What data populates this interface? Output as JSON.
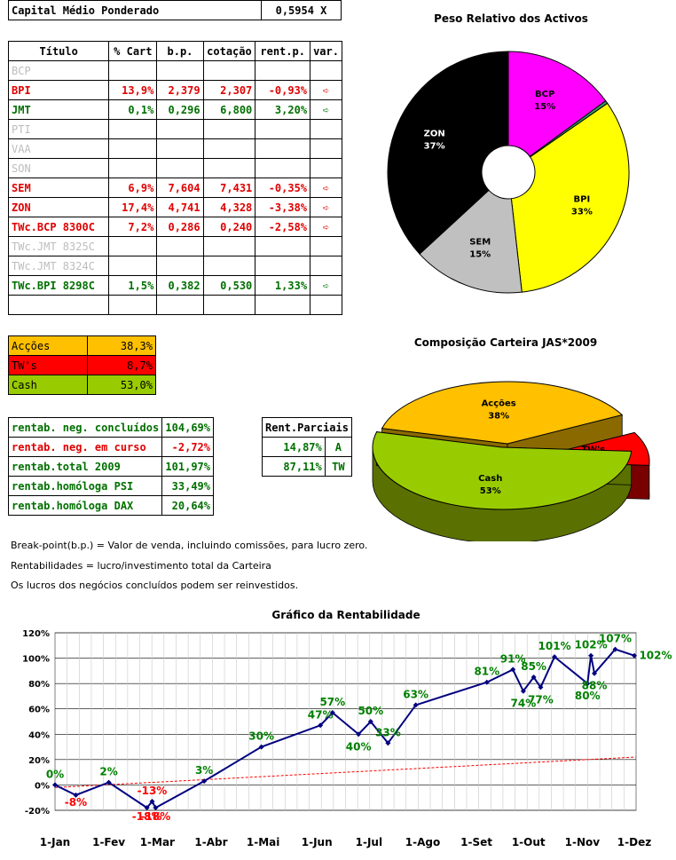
{
  "capital": {
    "label": "Capital Médio Ponderado",
    "value": "0,5954 X"
  },
  "titles": {
    "pie1": "Peso Relativo dos Activos",
    "pie2": "Composição Carteira JAS*2009",
    "line": "Gráfico da Rentabilidade"
  },
  "table": {
    "headers": [
      "Título",
      "% Cart",
      "b.p.",
      "cotação",
      "rent.p.",
      "var."
    ],
    "rows": [
      {
        "name": "BCP",
        "cart": "",
        "bp": "",
        "cot": "",
        "rent": "",
        "var": "",
        "status": "grey"
      },
      {
        "name": "BPI",
        "cart": "13,9%",
        "bp": "2,379",
        "cot": "2,307",
        "rent": "-0,93%",
        "var": "➪",
        "status": "red"
      },
      {
        "name": "JMT",
        "cart": "0,1%",
        "bp": "0,296",
        "cot": "6,800",
        "rent": "3,20%",
        "var": "➪",
        "status": "green"
      },
      {
        "name": "PTI",
        "cart": "",
        "bp": "",
        "cot": "",
        "rent": "",
        "var": "",
        "status": "grey"
      },
      {
        "name": "VAA",
        "cart": "",
        "bp": "",
        "cot": "",
        "rent": "",
        "var": "",
        "status": "grey"
      },
      {
        "name": "SON",
        "cart": "",
        "bp": "",
        "cot": "",
        "rent": "",
        "var": "",
        "status": "grey"
      },
      {
        "name": "SEM",
        "cart": "6,9%",
        "bp": "7,604",
        "cot": "7,431",
        "rent": "-0,35%",
        "var": "➪",
        "status": "red"
      },
      {
        "name": "ZON",
        "cart": "17,4%",
        "bp": "4,741",
        "cot": "4,328",
        "rent": "-3,38%",
        "var": "➪",
        "status": "red"
      },
      {
        "name": "TWc.BCP 8300C",
        "cart": "7,2%",
        "bp": "0,286",
        "cot": "0,240",
        "rent": "-2,58%",
        "var": "➪",
        "status": "red"
      },
      {
        "name": "TWc.JMT 8325C",
        "cart": "",
        "bp": "",
        "cot": "",
        "rent": "",
        "var": "",
        "status": "grey"
      },
      {
        "name": "TWc.JMT 8324C",
        "cart": "",
        "bp": "",
        "cot": "",
        "rent": "",
        "var": "",
        "status": "grey"
      },
      {
        "name": "TWc.BPI 8298C",
        "cart": "1,5%",
        "bp": "0,382",
        "cot": "0,530",
        "rent": "1,33%",
        "var": "➪",
        "status": "green"
      },
      {
        "name": "",
        "cart": "",
        "bp": "",
        "cot": "",
        "rent": "",
        "var": "",
        "status": "grey"
      }
    ]
  },
  "composition": [
    {
      "label": "Acções",
      "value": "38,3%",
      "color": "#ffc000"
    },
    {
      "label": "TW's",
      "value": "8,7%",
      "color": "#ff0000"
    },
    {
      "label": "Cash",
      "value": "53,0%",
      "color": "#99cc00"
    }
  ],
  "returns": [
    {
      "label": "rentab. neg. concluídos",
      "value": "104,69%",
      "status": "green"
    },
    {
      "label": "rentab. neg. em curso",
      "value": "-2,72%",
      "status": "red"
    },
    {
      "label": "rentab.total 2009",
      "value": "101,97%",
      "status": "green"
    },
    {
      "label": "rentab.homóloga PSI",
      "value": "33,49%",
      "status": "green"
    },
    {
      "label": "rentab.homóloga DAX",
      "value": "20,64%",
      "status": "green"
    }
  ],
  "partials": {
    "header": "Rent.Parciais",
    "rows": [
      {
        "value": "14,87%",
        "tag": "A"
      },
      {
        "value": "87,11%",
        "tag": "TW"
      }
    ]
  },
  "notes": [
    "Break-point(b.p.) = Valor de venda, incluindo comissões, para lucro zero.",
    "Rentabilidades = lucro/investimento total da Carteira",
    "Os lucros dos negócios concluídos podem ser reinvestidos."
  ],
  "chart_data": [
    {
      "type": "pie",
      "title": "Peso Relativo dos Activos",
      "labels": [
        "BCP",
        "JMT",
        "BPI",
        "SEM",
        "ZON"
      ],
      "values": [
        15,
        0.4,
        33,
        15,
        37
      ],
      "value_labels": [
        "15%",
        "0%",
        "33%",
        "15%",
        "37%"
      ],
      "colors": [
        "#ff00ff",
        "#339966",
        "#ffff00",
        "#c0c0c0",
        "#000000"
      ]
    },
    {
      "type": "pie",
      "title": "Composição Carteira JAS*2009",
      "labels": [
        "Acções",
        "TW's",
        "Cash"
      ],
      "values": [
        38.3,
        8.7,
        53.0
      ],
      "value_labels": [
        "38%",
        "9%",
        "53%"
      ],
      "colors": [
        "#ffc000",
        "#ff0000",
        "#99cc00"
      ]
    },
    {
      "type": "line",
      "title": "Gráfico da Rentabilidade",
      "x_ticks": [
        "1-Jan",
        "1-Fev",
        "1-Mar",
        "1-Abr",
        "1-Mai",
        "1-Jun",
        "1-Jul",
        "1-Ago",
        "1-Set",
        "1-Out",
        "1-Nov",
        "1-Dez"
      ],
      "y_ticks": [
        "-20%",
        "0%",
        "20%",
        "40%",
        "60%",
        "80%",
        "100%",
        "120%"
      ],
      "ylim": [
        -20,
        120
      ],
      "series": [
        {
          "color": "#000080",
          "points": [
            {
              "d": 0,
              "y": 0,
              "label": "0%"
            },
            {
              "d": 12,
              "y": -8,
              "label": "-8%"
            },
            {
              "d": 31,
              "y": 2,
              "label": "2%"
            },
            {
              "d": 53,
              "y": -18,
              "label": "-18%"
            },
            {
              "d": 56,
              "y": -13,
              "label": "-13%"
            },
            {
              "d": 58,
              "y": -18,
              "label": "-18%"
            },
            {
              "d": 86,
              "y": 3,
              "label": "3%"
            },
            {
              "d": 119,
              "y": 30,
              "label": "30%"
            },
            {
              "d": 153,
              "y": 47,
              "label": "47%"
            },
            {
              "d": 160,
              "y": 57,
              "label": "57%"
            },
            {
              "d": 175,
              "y": 40,
              "label": "40%"
            },
            {
              "d": 182,
              "y": 50,
              "label": "50%"
            },
            {
              "d": 192,
              "y": 33,
              "label": "33%"
            },
            {
              "d": 208,
              "y": 63,
              "label": "63%"
            },
            {
              "d": 249,
              "y": 81,
              "label": "81%"
            },
            {
              "d": 264,
              "y": 91,
              "label": "91%"
            },
            {
              "d": 270,
              "y": 74,
              "label": "74%"
            },
            {
              "d": 276,
              "y": 85,
              "label": "85%"
            },
            {
              "d": 280,
              "y": 77,
              "label": "77%"
            },
            {
              "d": 288,
              "y": 101,
              "label": "101%"
            },
            {
              "d": 307,
              "y": 80,
              "label": "80%"
            },
            {
              "d": 309,
              "y": 102,
              "label": "102%"
            },
            {
              "d": 311,
              "y": 88,
              "label": "88%"
            },
            {
              "d": 323,
              "y": 107,
              "label": "107%"
            },
            {
              "d": 334,
              "y": 102,
              "label": "102%"
            }
          ]
        }
      ],
      "trend": {
        "color": "#ff0000",
        "start": -2,
        "end": 22
      }
    }
  ]
}
